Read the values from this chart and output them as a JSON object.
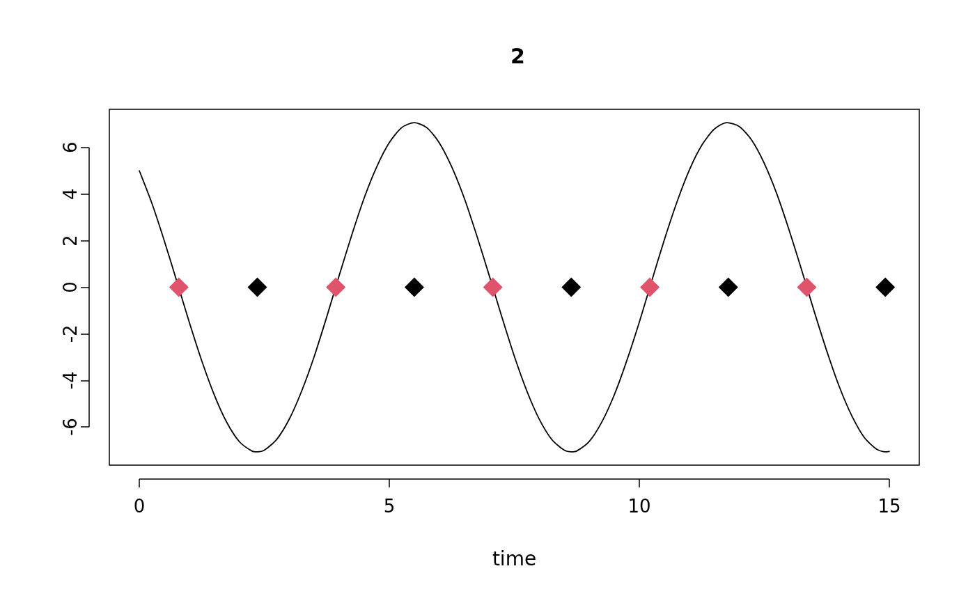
{
  "chart_data": {
    "type": "line",
    "title": "2",
    "xlabel": "time",
    "xlim": [
      -0.6,
      15.6
    ],
    "ylim": [
      -7.64,
      7.64
    ],
    "xticks": [
      0,
      5,
      10,
      15
    ],
    "yticks": [
      -6,
      -4,
      -2,
      0,
      2,
      4,
      6
    ],
    "series": [
      {
        "color": "#000000",
        "line_style": "solid",
        "marker": "none",
        "x": [
          0,
          0.25,
          0.5,
          0.75,
          1,
          1.25,
          1.5,
          1.75,
          2,
          2.25,
          2.36,
          2.5,
          2.75,
          3,
          3.25,
          3.5,
          3.75,
          4,
          4.25,
          4.5,
          4.75,
          5,
          5.25,
          5.5,
          5.75,
          6,
          6.25,
          6.5,
          6.75,
          7,
          7.25,
          7.5,
          7.75,
          8,
          8.25,
          8.5,
          8.64,
          8.75,
          9,
          9.25,
          9.5,
          9.75,
          10,
          10.25,
          10.5,
          10.75,
          11,
          11.25,
          11.5,
          11.75,
          12,
          12.25,
          12.5,
          12.75,
          13,
          13.25,
          13.5,
          13.75,
          14,
          14.25,
          14.5,
          14.75,
          14.92,
          15
        ],
        "values": [
          5.0,
          3.61,
          1.99,
          0.25,
          -1.51,
          -3.17,
          -4.63,
          -5.81,
          -6.63,
          -7.03,
          -7.07,
          -7.0,
          -6.53,
          -5.66,
          -4.44,
          -2.96,
          -1.26,
          0.52,
          2.25,
          3.85,
          5.18,
          6.21,
          6.86,
          7.07,
          6.85,
          6.2,
          5.16,
          3.82,
          2.21,
          0.49,
          -1.27,
          -2.96,
          -4.45,
          -5.67,
          -6.54,
          -7.0,
          -7.07,
          -7.03,
          -6.62,
          -5.79,
          -4.62,
          -3.15,
          -1.5,
          0.28,
          2.03,
          3.64,
          5.03,
          6.1,
          6.79,
          7.07,
          6.9,
          6.31,
          5.32,
          4.01,
          2.43,
          0.72,
          -1.05,
          -2.74,
          -4.27,
          -5.52,
          -6.45,
          -6.96,
          -7.07,
          -7.05
        ]
      },
      {
        "type": "scatter",
        "color": "#df536b",
        "marker": "diamond",
        "x": [
          0.79,
          3.93,
          7.07,
          10.21,
          13.35
        ],
        "values": [
          0,
          0,
          0,
          0,
          0
        ]
      },
      {
        "type": "scatter",
        "color": "#000000",
        "marker": "diamond",
        "x": [
          2.36,
          5.5,
          8.64,
          11.78,
          14.92
        ],
        "values": [
          0,
          0,
          0,
          0,
          0
        ]
      }
    ]
  }
}
